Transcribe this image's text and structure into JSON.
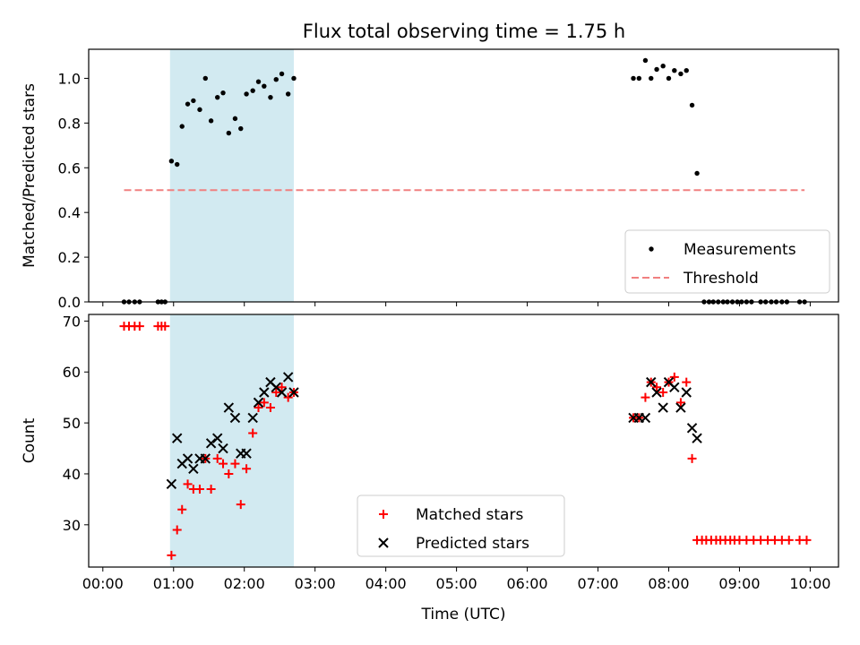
{
  "title": "Flux total observing time = 1.75 h",
  "chart_data": [
    {
      "type": "scatter",
      "ylabel": "Matched/Predicted stars",
      "xlabel": "",
      "xlim": [
        -0.2,
        10.4
      ],
      "ylim": [
        0,
        1.13
      ],
      "yticks": [
        0.0,
        0.2,
        0.4,
        0.6,
        0.8,
        1.0
      ],
      "ytick_labels": [
        "0.0",
        "0.2",
        "0.4",
        "0.6",
        "0.8",
        "1.0"
      ],
      "shaded_span": [
        0.95,
        2.7
      ],
      "grid": false,
      "legend_position": "lower right",
      "series": [
        {
          "name": "Measurements",
          "marker": "dot",
          "color": "#000000",
          "points": [
            [
              0.3,
              0.0
            ],
            [
              0.37,
              0.0
            ],
            [
              0.45,
              0.0
            ],
            [
              0.52,
              0.0
            ],
            [
              0.78,
              0.0
            ],
            [
              0.83,
              0.0
            ],
            [
              0.88,
              0.0
            ],
            [
              0.97,
              0.63
            ],
            [
              1.05,
              0.615
            ],
            [
              1.12,
              0.785
            ],
            [
              1.2,
              0.885
            ],
            [
              1.28,
              0.9
            ],
            [
              1.37,
              0.86
            ],
            [
              1.45,
              1.0
            ],
            [
              1.53,
              0.81
            ],
            [
              1.62,
              0.915
            ],
            [
              1.7,
              0.935
            ],
            [
              1.78,
              0.755
            ],
            [
              1.87,
              0.82
            ],
            [
              1.95,
              0.775
            ],
            [
              2.03,
              0.93
            ],
            [
              2.12,
              0.945
            ],
            [
              2.2,
              0.985
            ],
            [
              2.28,
              0.965
            ],
            [
              2.37,
              0.915
            ],
            [
              2.45,
              0.995
            ],
            [
              2.53,
              1.02
            ],
            [
              2.62,
              0.93
            ],
            [
              2.7,
              1.0
            ],
            [
              7.5,
              1.0
            ],
            [
              7.58,
              1.0
            ],
            [
              7.67,
              1.08
            ],
            [
              7.75,
              1.0
            ],
            [
              7.83,
              1.04
            ],
            [
              7.92,
              1.055
            ],
            [
              8.0,
              1.0
            ],
            [
              8.08,
              1.035
            ],
            [
              8.17,
              1.02
            ],
            [
              8.25,
              1.035
            ],
            [
              8.33,
              0.88
            ],
            [
              8.4,
              0.575
            ],
            [
              8.5,
              0.0
            ],
            [
              8.57,
              0.0
            ],
            [
              8.63,
              0.0
            ],
            [
              8.7,
              0.0
            ],
            [
              8.77,
              0.0
            ],
            [
              8.83,
              0.0
            ],
            [
              8.9,
              0.0
            ],
            [
              8.97,
              0.0
            ],
            [
              9.03,
              0.0
            ],
            [
              9.1,
              0.0
            ],
            [
              9.17,
              0.0
            ],
            [
              9.3,
              0.0
            ],
            [
              9.37,
              0.0
            ],
            [
              9.45,
              0.0
            ],
            [
              9.52,
              0.0
            ],
            [
              9.6,
              0.0
            ],
            [
              9.67,
              0.0
            ],
            [
              9.85,
              0.0
            ],
            [
              9.92,
              0.0
            ]
          ]
        },
        {
          "name": "Threshold",
          "marker": "dashed-line",
          "color": "#f08080",
          "points": [
            [
              0.3,
              0.5
            ],
            [
              9.92,
              0.5
            ]
          ]
        }
      ]
    },
    {
      "type": "scatter",
      "ylabel": "Count",
      "xlabel": "Time (UTC)",
      "xlim": [
        -0.2,
        10.4
      ],
      "ylim": [
        21.7,
        71.3
      ],
      "yticks": [
        30,
        40,
        50,
        60,
        70
      ],
      "ytick_labels": [
        "30",
        "40",
        "50",
        "60",
        "70"
      ],
      "xticks": [
        0,
        1,
        2,
        3,
        4,
        5,
        6,
        7,
        8,
        9,
        10
      ],
      "xtick_labels": [
        "00:00",
        "01:00",
        "02:00",
        "03:00",
        "04:00",
        "05:00",
        "06:00",
        "07:00",
        "08:00",
        "09:00",
        "10:00"
      ],
      "shaded_span": [
        0.95,
        2.7
      ],
      "grid": false,
      "legend_position": "lower center",
      "series": [
        {
          "name": "Matched stars",
          "marker": "plus",
          "color": "#ff0000",
          "points": [
            [
              0.3,
              69
            ],
            [
              0.37,
              69
            ],
            [
              0.45,
              69
            ],
            [
              0.52,
              69
            ],
            [
              0.78,
              69
            ],
            [
              0.83,
              69
            ],
            [
              0.88,
              69
            ],
            [
              0.97,
              24
            ],
            [
              1.05,
              29
            ],
            [
              1.12,
              33
            ],
            [
              1.2,
              38
            ],
            [
              1.28,
              37
            ],
            [
              1.37,
              37
            ],
            [
              1.45,
              43
            ],
            [
              1.53,
              37
            ],
            [
              1.62,
              43
            ],
            [
              1.7,
              42
            ],
            [
              1.78,
              40
            ],
            [
              1.87,
              42
            ],
            [
              1.95,
              34
            ],
            [
              2.03,
              41
            ],
            [
              2.12,
              48
            ],
            [
              2.2,
              53
            ],
            [
              2.28,
              54
            ],
            [
              2.37,
              53
            ],
            [
              2.45,
              56
            ],
            [
              2.53,
              57
            ],
            [
              2.62,
              55
            ],
            [
              2.7,
              56
            ],
            [
              7.5,
              51
            ],
            [
              7.58,
              51
            ],
            [
              7.67,
              55
            ],
            [
              7.75,
              58
            ],
            [
              7.83,
              57
            ],
            [
              7.92,
              56
            ],
            [
              8.0,
              58
            ],
            [
              8.08,
              59
            ],
            [
              8.17,
              54
            ],
            [
              8.25,
              58
            ],
            [
              8.33,
              43
            ],
            [
              8.4,
              27
            ],
            [
              8.47,
              27
            ],
            [
              8.53,
              27
            ],
            [
              8.6,
              27
            ],
            [
              8.67,
              27
            ],
            [
              8.73,
              27
            ],
            [
              8.8,
              27
            ],
            [
              8.87,
              27
            ],
            [
              8.93,
              27
            ],
            [
              9.0,
              27
            ],
            [
              9.1,
              27
            ],
            [
              9.2,
              27
            ],
            [
              9.3,
              27
            ],
            [
              9.4,
              27
            ],
            [
              9.5,
              27
            ],
            [
              9.6,
              27
            ],
            [
              9.7,
              27
            ],
            [
              9.85,
              27
            ],
            [
              9.95,
              27
            ]
          ]
        },
        {
          "name": "Predicted stars",
          "marker": "x",
          "color": "#000000",
          "points": [
            [
              0.97,
              38
            ],
            [
              1.05,
              47
            ],
            [
              1.12,
              42
            ],
            [
              1.2,
              43
            ],
            [
              1.28,
              41
            ],
            [
              1.37,
              43
            ],
            [
              1.45,
              43
            ],
            [
              1.53,
              46
            ],
            [
              1.62,
              47
            ],
            [
              1.7,
              45
            ],
            [
              1.78,
              53
            ],
            [
              1.87,
              51
            ],
            [
              1.95,
              44
            ],
            [
              2.03,
              44
            ],
            [
              2.12,
              51
            ],
            [
              2.2,
              54
            ],
            [
              2.28,
              56
            ],
            [
              2.37,
              58
            ],
            [
              2.45,
              57
            ],
            [
              2.53,
              56
            ],
            [
              2.62,
              59
            ],
            [
              2.7,
              56
            ],
            [
              7.5,
              51
            ],
            [
              7.58,
              51
            ],
            [
              7.67,
              51
            ],
            [
              7.75,
              58
            ],
            [
              7.83,
              56
            ],
            [
              7.92,
              53
            ],
            [
              8.0,
              58
            ],
            [
              8.08,
              57
            ],
            [
              8.17,
              53
            ],
            [
              8.25,
              56
            ],
            [
              8.33,
              49
            ],
            [
              8.4,
              47
            ]
          ]
        }
      ]
    }
  ]
}
